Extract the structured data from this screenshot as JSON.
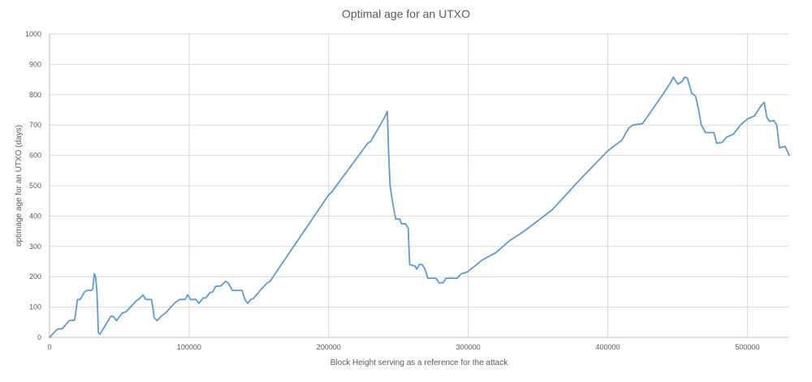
{
  "chart_data": {
    "type": "line",
    "title": "Optimal age for an UTXO",
    "xlabel": "Block Height serving as a reference for the attack",
    "ylabel": "optimage age for an UTXO (days)",
    "xlim": [
      0,
      530000
    ],
    "ylim": [
      0,
      1000
    ],
    "x_ticks": [
      0,
      100000,
      200000,
      300000,
      400000,
      500000
    ],
    "y_ticks": [
      0,
      100,
      200,
      300,
      400,
      500,
      600,
      700,
      800,
      900,
      1000
    ],
    "grid": "vertical and horizontal",
    "color": "#5b9bd5",
    "series": [
      {
        "points": [
          [
            0,
            0
          ],
          [
            5000,
            25
          ],
          [
            7000,
            28
          ],
          [
            9000,
            28
          ],
          [
            14000,
            55
          ],
          [
            18000,
            57
          ],
          [
            19000,
            90
          ],
          [
            20000,
            125
          ],
          [
            22000,
            125
          ],
          [
            25000,
            150
          ],
          [
            27000,
            155
          ],
          [
            30000,
            155
          ],
          [
            31000,
            160
          ],
          [
            32000,
            210
          ],
          [
            33000,
            200
          ],
          [
            34000,
            150
          ],
          [
            35000,
            15
          ],
          [
            36000,
            10
          ],
          [
            40000,
            40
          ],
          [
            44000,
            70
          ],
          [
            46000,
            68
          ],
          [
            48000,
            55
          ],
          [
            52000,
            80
          ],
          [
            55000,
            85
          ],
          [
            58000,
            100
          ],
          [
            62000,
            120
          ],
          [
            65000,
            130
          ],
          [
            67000,
            140
          ],
          [
            69000,
            125
          ],
          [
            73000,
            125
          ],
          [
            74000,
            100
          ],
          [
            75000,
            65
          ],
          [
            77000,
            55
          ],
          [
            80000,
            70
          ],
          [
            83000,
            80
          ],
          [
            87000,
            100
          ],
          [
            90000,
            115
          ],
          [
            93000,
            125
          ],
          [
            97000,
            125
          ],
          [
            99000,
            140
          ],
          [
            101000,
            125
          ],
          [
            105000,
            125
          ],
          [
            107000,
            112
          ],
          [
            110000,
            130
          ],
          [
            112000,
            130
          ],
          [
            115000,
            148
          ],
          [
            117000,
            150
          ],
          [
            119000,
            168
          ],
          [
            123000,
            170
          ],
          [
            126000,
            185
          ],
          [
            128000,
            180
          ],
          [
            131000,
            155
          ],
          [
            138000,
            155
          ],
          [
            140000,
            125
          ],
          [
            142000,
            112
          ],
          [
            144000,
            125
          ],
          [
            146000,
            128
          ],
          [
            150000,
            150
          ],
          [
            156000,
            180
          ],
          [
            158000,
            185
          ],
          [
            200000,
            470
          ],
          [
            202000,
            478
          ],
          [
            228000,
            640
          ],
          [
            230000,
            645
          ],
          [
            240000,
            725
          ],
          [
            242000,
            745
          ],
          [
            243000,
            600
          ],
          [
            244000,
            500
          ],
          [
            246000,
            440
          ],
          [
            248000,
            390
          ],
          [
            251000,
            390
          ],
          [
            252000,
            375
          ],
          [
            255000,
            375
          ],
          [
            257000,
            360
          ],
          [
            258000,
            240
          ],
          [
            262000,
            235
          ],
          [
            263000,
            225
          ],
          [
            265000,
            240
          ],
          [
            267000,
            240
          ],
          [
            269000,
            225
          ],
          [
            271000,
            195
          ],
          [
            277000,
            195
          ],
          [
            279000,
            180
          ],
          [
            282000,
            180
          ],
          [
            284000,
            195
          ],
          [
            292000,
            195
          ],
          [
            295000,
            210
          ],
          [
            299000,
            215
          ],
          [
            306000,
            240
          ],
          [
            310000,
            255
          ],
          [
            320000,
            280
          ],
          [
            330000,
            320
          ],
          [
            340000,
            350
          ],
          [
            350000,
            385
          ],
          [
            360000,
            420
          ],
          [
            380000,
            520
          ],
          [
            400000,
            615
          ],
          [
            410000,
            650
          ],
          [
            415000,
            690
          ],
          [
            418000,
            700
          ],
          [
            425000,
            705
          ],
          [
            440000,
            805
          ],
          [
            445000,
            840
          ],
          [
            447000,
            858
          ],
          [
            450000,
            835
          ],
          [
            453000,
            842
          ],
          [
            455000,
            858
          ],
          [
            457000,
            855
          ],
          [
            460000,
            805
          ],
          [
            463000,
            795
          ],
          [
            465000,
            750
          ],
          [
            467000,
            700
          ],
          [
            470000,
            675
          ],
          [
            476000,
            675
          ],
          [
            478000,
            640
          ],
          [
            482000,
            643
          ],
          [
            485000,
            660
          ],
          [
            490000,
            670
          ],
          [
            495000,
            700
          ],
          [
            500000,
            720
          ],
          [
            505000,
            730
          ],
          [
            510000,
            765
          ],
          [
            512000,
            775
          ],
          [
            514000,
            725
          ],
          [
            516000,
            712
          ],
          [
            519000,
            715
          ],
          [
            521000,
            700
          ],
          [
            523000,
            625
          ],
          [
            527000,
            630
          ],
          [
            530000,
            600
          ]
        ]
      }
    ]
  }
}
